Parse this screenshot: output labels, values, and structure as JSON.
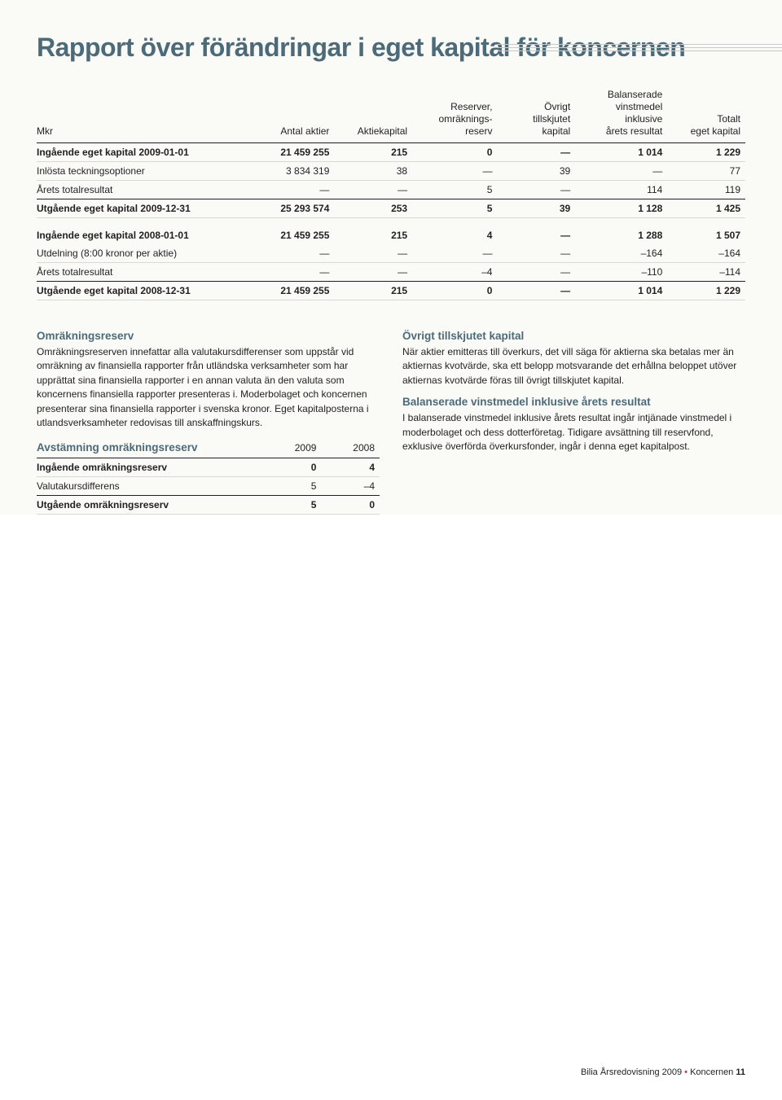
{
  "title": "Rapport över förändringar i eget kapital för koncernen",
  "main_table": {
    "headers": {
      "c0": "Mkr",
      "c1": "Antal aktier",
      "c2": "Aktiekapital",
      "c3_l1": "Reserver,",
      "c3_l2": "omräknings-",
      "c3_l3": "reserv",
      "c4_l1": "Övrigt",
      "c4_l2": "tillskjutet",
      "c4_l3": "kapital",
      "c5_l1": "Balanserade",
      "c5_l2": "vinstmedel",
      "c5_l3": "inklusive",
      "c5_l4": "årets resultat",
      "c6_l1": "Totalt",
      "c6_l2": "eget kapital"
    },
    "rows": [
      {
        "bold": true,
        "c0": "Ingående eget kapital 2009-01-01",
        "c1": "21 459 255",
        "c2": "215",
        "c3": "0",
        "c4": "—",
        "c5": "1 014",
        "c6": "1 229"
      },
      {
        "bold": false,
        "c0": "Inlösta teckningsoptioner",
        "c1": "3 834 319",
        "c2": "38",
        "c3": "—",
        "c4": "39",
        "c5": "—",
        "c6": "77"
      },
      {
        "bold": false,
        "c0": "Årets totalresultat",
        "c1": "—",
        "c2": "—",
        "c3": "5",
        "c4": "—",
        "c5": "114",
        "c6": "119",
        "heavy": true
      },
      {
        "bold": true,
        "c0": "Utgående eget kapital 2009-12-31",
        "c1": "25 293 574",
        "c2": "253",
        "c3": "5",
        "c4": "39",
        "c5": "1 128",
        "c6": "1 425"
      }
    ],
    "rows2": [
      {
        "bold": true,
        "c0": "Ingående eget kapital 2008-01-01",
        "c1": "21 459 255",
        "c2": "215",
        "c3": "4",
        "c4": "—",
        "c5": "1 288",
        "c6": "1 507"
      },
      {
        "bold": false,
        "c0": "Utdelning (8:00 kronor per aktie)",
        "c1": "—",
        "c2": "—",
        "c3": "—",
        "c4": "—",
        "c5": "–164",
        "c6": "–164"
      },
      {
        "bold": false,
        "c0": "Årets totalresultat",
        "c1": "—",
        "c2": "—",
        "c3": "–4",
        "c4": "—",
        "c5": "–110",
        "c6": "–114",
        "heavy": true
      },
      {
        "bold": true,
        "c0": "Utgående eget kapital 2008-12-31",
        "c1": "21 459 255",
        "c2": "215",
        "c3": "0",
        "c4": "—",
        "c5": "1 014",
        "c6": "1 229"
      }
    ]
  },
  "left_col": {
    "h1": "Omräkningsreserv",
    "p1": "Omräkningsreserven innefattar alla valutakursdifferenser som uppstår vid omräkning av finansiella rapporter från utländska verksamheter som har upprättat sina finansiella rapporter i en annan valuta än den valuta som koncernens finansiella rapporter presenteras i. Moderbolaget och koncernen presenterar sina finansiella rapporter i svenska kronor. Eget kapitalposterna i utlandsverksamheter redovisas till anskaffningskurs."
  },
  "small_table": {
    "title": "Avstämning omräkningsreserv",
    "year1": "2009",
    "year2": "2008",
    "rows": [
      {
        "bold": true,
        "label": "Ingående omräkningsreserv",
        "v1": "0",
        "v2": "4"
      },
      {
        "bold": false,
        "label": "Valutakursdifferens",
        "v1": "5",
        "v2": "–4",
        "heavy": true
      },
      {
        "bold": true,
        "label": "Utgående omräkningsreserv",
        "v1": "5",
        "v2": "0"
      }
    ]
  },
  "right_col": {
    "h1": "Övrigt tillskjutet kapital",
    "p1": "När aktier emitteras till överkurs, det vill säga för aktierna ska betalas mer än aktiernas kvotvärde, ska ett belopp motsvarande det erhållna beloppet utöver aktiernas kvotvärde föras till övrigt tillskjutet kapital.",
    "h2": "Balanserade vinstmedel inklusive årets resultat",
    "p2": "I balanserade vinstmedel inklusive årets resultat ingår intjänade vinstmedel i moderbolaget och dess dotterföretag. Tidigare avsättning till reservfond, exklusive överförda överkursfonder, ingår i denna eget kapitalpost."
  },
  "footer": {
    "text1": "Bilia Årsredovisning 2009 ",
    "text2": " Koncernen  ",
    "page": "11"
  }
}
